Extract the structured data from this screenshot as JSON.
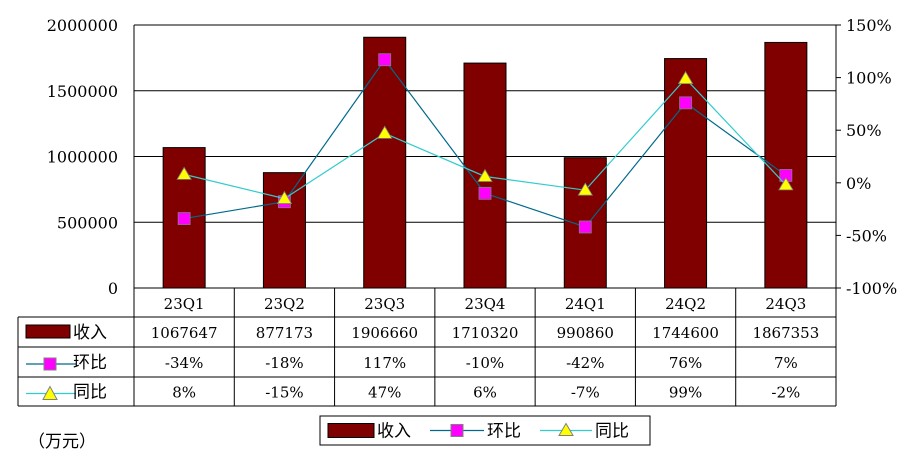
{
  "chart_data": {
    "type": "bar",
    "categories": [
      "23Q1",
      "23Q2",
      "23Q3",
      "23Q4",
      "24Q1",
      "24Q2",
      "24Q3"
    ],
    "series": [
      {
        "name": "收入",
        "type": "bar",
        "axis": "left",
        "color": "#800000",
        "values": [
          1067647,
          877173,
          1906660,
          1710320,
          990860,
          1744600,
          1867353
        ],
        "labels": [
          "1067647",
          "877173",
          "1906660",
          "1710320",
          "990860",
          "1744600",
          "1867353"
        ]
      },
      {
        "name": "环比",
        "type": "line",
        "axis": "right",
        "color": "#ff00ff",
        "line_color": "#00698c",
        "marker": "square",
        "values": [
          -34,
          -18,
          117,
          -10,
          -42,
          76,
          7
        ],
        "labels": [
          "-34%",
          "-18%",
          "117%",
          "-10%",
          "-42%",
          "76%",
          "7%"
        ]
      },
      {
        "name": "同比",
        "type": "line",
        "axis": "right",
        "color": "#ffff00",
        "line_color": "#33cccc",
        "marker": "triangle",
        "values": [
          8,
          -15,
          47,
          6,
          -7,
          99,
          -2
        ],
        "labels": [
          "8%",
          "-15%",
          "47%",
          "6%",
          "-7%",
          "99%",
          "-2%"
        ]
      }
    ],
    "y_left": {
      "min": 0,
      "max": 2000000,
      "ticks": [
        "0",
        "500000",
        "1000000",
        "1500000",
        "2000000"
      ]
    },
    "y_right": {
      "min": -100,
      "max": 150,
      "ticks": [
        "-100%",
        "-50%",
        "0%",
        "50%",
        "100%",
        "150%"
      ]
    },
    "unit_note": "（万元）",
    "legend_position": "bottom",
    "grid": true,
    "data_table": true
  }
}
